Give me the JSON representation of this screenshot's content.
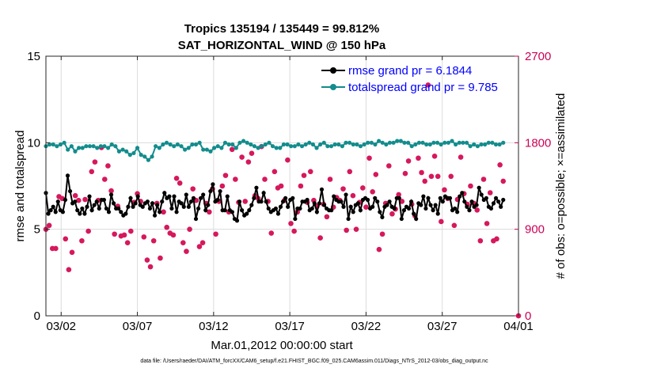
{
  "chart_data": {
    "type": "line",
    "title": "Tropics 135194 / 135449 = 99.812%",
    "subtitle": "SAT_HORIZONTAL_WIND @ 150 hPa",
    "xlabel": "Mar.01,2012 00:00:00 start",
    "ylabel": "rmse and totalspread",
    "y2label": "# of obs: o=possible; ×=assimilated",
    "footer": "data file: /Users/raeder/DAI/ATM_forcXX/CAM6_setup/f.e21.FHIST_BGC.f09_025.CAM6assim.011/Diags_NTrS_2012-03/obs_diag_output.nc",
    "xlim": [
      0,
      31
    ],
    "ylim": [
      0,
      15
    ],
    "y2lim": [
      0,
      2700
    ],
    "x_ticks": [
      1,
      6,
      11,
      16,
      21,
      26,
      31
    ],
    "x_tick_labels": [
      "03/02",
      "03/07",
      "03/12",
      "03/17",
      "03/22",
      "03/27",
      "04/01"
    ],
    "y_ticks": [
      0,
      5,
      10,
      15
    ],
    "y2_ticks": [
      0,
      900,
      1800,
      2700
    ],
    "grid": true,
    "legend_position": "top-right",
    "colors": {
      "rmse": "#000000",
      "spread": "#138c8c",
      "obs": "#d6185c",
      "right_axis": "#cc0055"
    },
    "series": [
      {
        "name": "rmse grand pr = 6.1844",
        "key": "rmse",
        "values": [
          7.1,
          5.9,
          6.1,
          6.3,
          6.0,
          6.6,
          6.1,
          6.0,
          6.7,
          8.1,
          7.2,
          6.5,
          6.6,
          6.1,
          5.9,
          6.2,
          5.9,
          6.3,
          6.9,
          6.1,
          6.4,
          6.6,
          6.2,
          6.7,
          6.7,
          6.2,
          6.0,
          7.0,
          6.5,
          6.2,
          6.2,
          6.0,
          5.8,
          5.9,
          6.3,
          6.8,
          6.3,
          6.5,
          6.9,
          6.4,
          6.3,
          6.5,
          6.6,
          6.2,
          6.5,
          5.8,
          6.4,
          6.0,
          6.6,
          7.1,
          6.8,
          6.9,
          6.2,
          6.9,
          6.0,
          6.6,
          6.5,
          6.3,
          7.0,
          6.3,
          6.6,
          6.8,
          5.6,
          6.2,
          6.8,
          7.0,
          6.1,
          6.4,
          7.2,
          7.6,
          6.6,
          6.7,
          7.2,
          6.1,
          6.1,
          6.9,
          6.1,
          6.0,
          5.6,
          5.5,
          6.6,
          6.1,
          5.8,
          5.9,
          6.1,
          6.4,
          6.8,
          7.4,
          6.6,
          6.6,
          7.1,
          6.6,
          6.2,
          6.0,
          6.1,
          6.2,
          5.9,
          6.3,
          6.6,
          6.8,
          6.3,
          6.7,
          6.8,
          5.6,
          6.2,
          6.2,
          6.6,
          6.6,
          6.7,
          6.1,
          6.2,
          6.5,
          6.0,
          6.5,
          7.3,
          6.4,
          6.2,
          6.1,
          6.1,
          6.9,
          6.7,
          6.6,
          6.6,
          6.3,
          7.0,
          5.6,
          6.3,
          6.0,
          6.4,
          6.5,
          6.1,
          6.7,
          6.8,
          6.7,
          6.2,
          6.3,
          6.8,
          6.6,
          6.0,
          5.7,
          6.3,
          6.4,
          6.6,
          6.3,
          6.2,
          6.8,
          6.8,
          5.6,
          6.1,
          6.3,
          6.2,
          6.6,
          5.9,
          5.6,
          6.5,
          6.4,
          6.9,
          6.2,
          6.8,
          6.4,
          6.1,
          6.4,
          5.9,
          6.8,
          6.6,
          6.9,
          6.8,
          6.8,
          6.1,
          6.2,
          6.0,
          6.9,
          7.1,
          6.6,
          6.3,
          6.1,
          6.6,
          6.3,
          6.4,
          7.4,
          7.0,
          6.7,
          6.8,
          6.3,
          6.2,
          6.5,
          6.8,
          6.6,
          6.3,
          6.7
        ]
      },
      {
        "name": "totalspread grand pr = 9.785",
        "key": "spread",
        "values": [
          9.8,
          9.9,
          9.9,
          9.8,
          9.9,
          10.0,
          9.6,
          9.8,
          9.5,
          9.7,
          9.7,
          9.8,
          9.8,
          9.8,
          9.7,
          9.8,
          9.8,
          9.7,
          9.9,
          9.8,
          9.5,
          9.6,
          9.5,
          9.3,
          9.4,
          9.7,
          9.3,
          9.2,
          9.0,
          9.2,
          9.8,
          9.7,
          9.9,
          10.0,
          9.9,
          9.8,
          9.9,
          9.8,
          9.6,
          9.7,
          9.9,
          9.9,
          10.0,
          9.6,
          9.6,
          9.5,
          9.7,
          9.8,
          9.7,
          10.0,
          9.9,
          9.9,
          9.7,
          10.0,
          10.1,
          10.0,
          9.9,
          9.8,
          9.7,
          9.8,
          9.9,
          10.0,
          9.8,
          9.7,
          9.7,
          9.9,
          9.9,
          9.8,
          9.8,
          9.9,
          9.8,
          9.9,
          10.0,
          9.9,
          9.7,
          9.9,
          10.0,
          9.8,
          9.8,
          9.9,
          9.9,
          9.8,
          10.0,
          10.0,
          9.9,
          9.9,
          9.8,
          9.9,
          10.0,
          10.0,
          9.9,
          10.1,
          10.0,
          9.9,
          10.0,
          10.0,
          10.1,
          10.1,
          10.0,
          10.0,
          9.8,
          9.9,
          10.0,
          10.0,
          9.9,
          9.9,
          10.0,
          10.0,
          9.9,
          10.0,
          10.0,
          10.1,
          9.9,
          10.0,
          10.0,
          10.0,
          9.8,
          9.9,
          9.8,
          9.9,
          9.9,
          10.0,
          10.0,
          9.9,
          9.9,
          10.0
        ]
      }
    ],
    "obs_counts": [
      900,
      940,
      700,
      700,
      1240,
      1220,
      800,
      480,
      660,
      1250,
      1200,
      780,
      1210,
      880,
      1500,
      1600,
      1200,
      1750,
      1420,
      1560,
      1300,
      850,
      1140,
      830,
      840,
      760,
      880,
      1180,
      1270,
      1190,
      820,
      580,
      510,
      780,
      1170,
      600,
      1080,
      920,
      860,
      840,
      1430,
      1380,
      760,
      670,
      900,
      1320,
      1200,
      720,
      760,
      1170,
      1080,
      1320,
      850,
      1190,
      1350,
      1460,
      1080,
      1730,
      1420,
      1180,
      1650,
      1190,
      1600,
      1690,
      1250,
      1220,
      1760,
      1420,
      1190,
      860,
      1500,
      1330,
      1350,
      1200,
      1620,
      960,
      880,
      1080,
      1350,
      1460,
      1180,
      1500,
      1200,
      1140,
      810,
      1160,
      1030,
      1420,
      1130,
      1230,
      1200,
      1320,
      890,
      1500,
      1250,
      900,
      1180,
      1330,
      1130,
      1640,
      1290,
      1470,
      690,
      850,
      1170,
      1560,
      1060,
      1110,
      1260,
      1190,
      1480,
      1610,
      1160,
      1040,
      1640,
      1490,
      1400,
      2400,
      1450,
      1660,
      1450,
      980,
      1310,
      1220,
      1450,
      940,
      1210,
      1650,
      1270,
      1160,
      1350,
      1170,
      1100,
      780,
      1420,
      960,
      1280,
      780,
      800,
      1570,
      1400
    ]
  }
}
